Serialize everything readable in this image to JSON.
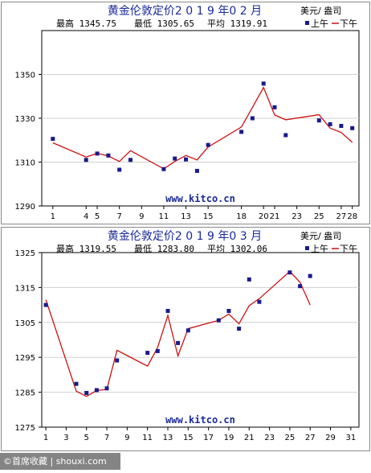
{
  "watermark": "©首席收藏 | shouxi.com",
  "colors": {
    "frame": "#8a8a8a",
    "title": "#1a2a9a",
    "line": "#cc1111",
    "marker": "#1a1a8c",
    "grid": "#d0d0d0",
    "url": "#1a2a9a"
  },
  "chart_data": [
    {
      "type": "line",
      "title": "黄金伦敦定价2 0 1 9 年0 2 月",
      "unit_label": "美元/ 盎司",
      "stats": {
        "high": "最高 1345.75",
        "low": "最低 1305.65",
        "avg": "平均 1319.91"
      },
      "legend": {
        "am": "上午",
        "pm": "下午"
      },
      "url": "www.kitco.cn",
      "xlim": [
        0,
        28.6
      ],
      "ylim": [
        1290,
        1370
      ],
      "xticks": [
        1,
        4,
        5,
        7,
        9,
        11,
        13,
        15,
        18,
        20,
        21,
        23,
        25,
        27,
        28
      ],
      "xtick_labels": [
        "1",
        "4",
        "5",
        "7",
        "9",
        "11",
        "13",
        "15",
        "18",
        "20",
        "21",
        "23",
        "25",
        "27",
        "28"
      ],
      "yticks": [
        1290,
        1310,
        1330,
        1350
      ],
      "series": [
        {
          "name": "上午",
          "x": [
            1,
            4,
            5,
            6,
            7,
            8,
            11,
            12,
            13,
            14,
            15,
            18,
            19,
            20,
            21,
            22,
            25,
            26,
            27,
            28
          ],
          "values": [
            1320.6,
            1311.0,
            1313.9,
            1313.0,
            1306.5,
            1311.0,
            1306.8,
            1311.6,
            1311.2,
            1306.0,
            1317.8,
            1323.8,
            1330.0,
            1345.8,
            1335.0,
            1322.3,
            1329.0,
            1327.3,
            1326.5,
            1325.5
          ]
        },
        {
          "name": "下午",
          "x": [
            1,
            4,
            5,
            6,
            7,
            8,
            11,
            12,
            13,
            14,
            15,
            18,
            19,
            20,
            21,
            22,
            25,
            26,
            27,
            28
          ],
          "values": [
            1318.8,
            1312.3,
            1314.0,
            1312.8,
            1310.3,
            1315.2,
            1306.9,
            1310.3,
            1313.0,
            1311.0,
            1316.9,
            1326.0,
            1335.0,
            1344.0,
            1331.5,
            1329.3,
            1331.6,
            1325.5,
            1323.5,
            1319.0
          ]
        }
      ]
    },
    {
      "type": "line",
      "title": "黄金伦敦定价2 0 1 9 年0 3 月",
      "unit_label": "美元/ 盎司",
      "stats": {
        "high": "最高 1319.55",
        "low": "最低 1283.80",
        "avg": "平均 1302.06"
      },
      "legend": {
        "am": "上午",
        "pm": "下午"
      },
      "url": "www.kitco.cn",
      "xlim": [
        0.6,
        31.8
      ],
      "ylim": [
        1275,
        1325
      ],
      "xticks": [
        1,
        3,
        5,
        7,
        9,
        11,
        13,
        15,
        17,
        19,
        21,
        23,
        25,
        27,
        29,
        31
      ],
      "xtick_labels": [
        "1",
        "3",
        "5",
        "7",
        "9",
        "11",
        "13",
        "15",
        "17",
        "19",
        "21",
        "23",
        "25",
        "27",
        "29",
        "31"
      ],
      "yticks": [
        1275,
        1285,
        1295,
        1305,
        1315,
        1325
      ],
      "series": [
        {
          "name": "上午",
          "x": [
            1,
            4,
            5,
            6,
            7,
            8,
            11,
            12,
            13,
            14,
            15,
            18,
            19,
            20,
            21,
            22,
            25,
            26,
            27
          ],
          "values": [
            1310.0,
            1287.4,
            1284.8,
            1285.6,
            1286.1,
            1294.1,
            1296.3,
            1296.8,
            1308.3,
            1299.1,
            1302.7,
            1305.6,
            1308.3,
            1303.2,
            1317.3,
            1310.9,
            1319.3,
            1315.4,
            1318.3
          ]
        },
        {
          "name": "下午",
          "x": [
            1,
            4,
            5,
            6,
            7,
            8,
            11,
            12,
            13,
            14,
            15,
            18,
            19,
            20,
            21,
            22,
            25,
            26,
            27
          ],
          "values": [
            1311.5,
            1285.3,
            1283.8,
            1285.5,
            1285.8,
            1297.0,
            1292.5,
            1297.8,
            1307.0,
            1295.4,
            1303.2,
            1305.6,
            1307.4,
            1304.6,
            1309.8,
            1311.8,
            1319.6,
            1316.5,
            1310.0
          ]
        }
      ]
    }
  ]
}
